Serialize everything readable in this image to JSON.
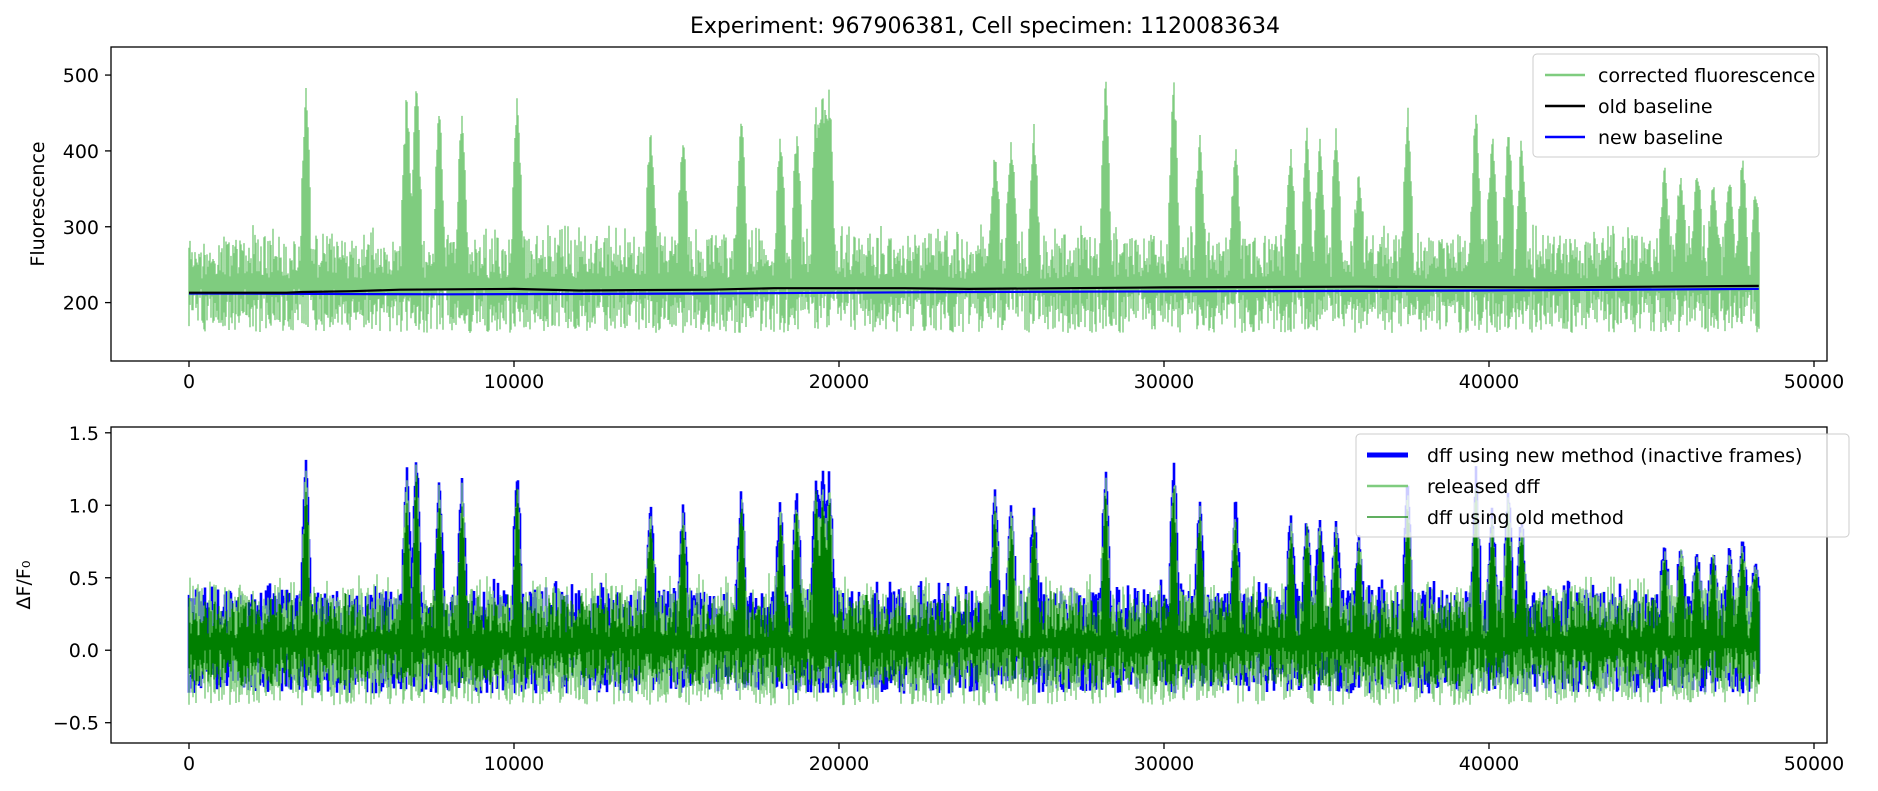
{
  "figure": {
    "title": "Experiment: 967906381, Cell specimen: 1120083634"
  },
  "chart_data": [
    {
      "type": "line",
      "title": "Experiment: 967906381, Cell specimen: 1120083634",
      "xlabel": "",
      "ylabel": "Fluorescence",
      "xlim": [
        -2400,
        50400
      ],
      "ylim": [
        123,
        537
      ],
      "xticks": [
        0,
        10000,
        20000,
        30000,
        40000,
        50000
      ],
      "yticks": [
        200,
        300,
        400,
        500
      ],
      "xtick_labels": [
        "0",
        "10000",
        "20000",
        "30000",
        "40000",
        "50000"
      ],
      "ytick_labels": [
        "200",
        "300",
        "400",
        "500"
      ],
      "legend_position": "top-right",
      "grid": false,
      "n_frames": 48300,
      "series": [
        {
          "name": "corrected fluorescence",
          "color": "#7fcc7f",
          "baseline": 215,
          "noise_range": [
            160,
            290
          ],
          "peaks": [
            {
              "x": 3600,
              "y": 502
            },
            {
              "x": 6700,
              "y": 488
            },
            {
              "x": 7000,
              "y": 515
            },
            {
              "x": 7700,
              "y": 470
            },
            {
              "x": 8400,
              "y": 470
            },
            {
              "x": 10100,
              "y": 480
            },
            {
              "x": 14200,
              "y": 440
            },
            {
              "x": 15200,
              "y": 436
            },
            {
              "x": 17000,
              "y": 462
            },
            {
              "x": 18200,
              "y": 432
            },
            {
              "x": 18700,
              "y": 440
            },
            {
              "x": 19300,
              "y": 470
            },
            {
              "x": 19500,
              "y": 497
            },
            {
              "x": 19700,
              "y": 490
            },
            {
              "x": 24800,
              "y": 410
            },
            {
              "x": 25300,
              "y": 423
            },
            {
              "x": 26000,
              "y": 440
            },
            {
              "x": 28200,
              "y": 505
            },
            {
              "x": 30300,
              "y": 510
            },
            {
              "x": 31100,
              "y": 430
            },
            {
              "x": 32200,
              "y": 410
            },
            {
              "x": 33900,
              "y": 410
            },
            {
              "x": 34400,
              "y": 440
            },
            {
              "x": 34800,
              "y": 425
            },
            {
              "x": 35300,
              "y": 440
            },
            {
              "x": 36000,
              "y": 380
            },
            {
              "x": 37500,
              "y": 466
            },
            {
              "x": 39600,
              "y": 470
            },
            {
              "x": 40100,
              "y": 430
            },
            {
              "x": 40600,
              "y": 450
            },
            {
              "x": 41000,
              "y": 425
            },
            {
              "x": 45400,
              "y": 385
            },
            {
              "x": 45900,
              "y": 380
            },
            {
              "x": 46400,
              "y": 383
            },
            {
              "x": 46900,
              "y": 365
            },
            {
              "x": 47400,
              "y": 370
            },
            {
              "x": 47800,
              "y": 396
            },
            {
              "x": 48200,
              "y": 355
            }
          ]
        },
        {
          "name": "old baseline",
          "color": "#000000",
          "points": [
            [
              0,
              213
            ],
            [
              3000,
              213
            ],
            [
              3500,
              214
            ],
            [
              5000,
              215
            ],
            [
              6500,
              217
            ],
            [
              10000,
              218
            ],
            [
              12000,
              216
            ],
            [
              16000,
              217
            ],
            [
              18000,
              219
            ],
            [
              22000,
              219
            ],
            [
              24000,
              218
            ],
            [
              30000,
              220
            ],
            [
              36000,
              221
            ],
            [
              42000,
              220
            ],
            [
              48300,
              222
            ]
          ]
        },
        {
          "name": "new baseline",
          "color": "#0000ff",
          "points": [
            [
              0,
              212
            ],
            [
              8000,
              211
            ],
            [
              16000,
              212
            ],
            [
              24000,
              214
            ],
            [
              32000,
              215
            ],
            [
              40000,
              216
            ],
            [
              48300,
              218
            ]
          ]
        }
      ]
    },
    {
      "type": "line",
      "title": "",
      "xlabel": "",
      "ylabel": "ΔF/F₀",
      "xlim": [
        -2400,
        50400
      ],
      "ylim": [
        -0.64,
        1.54
      ],
      "xticks": [
        0,
        10000,
        20000,
        30000,
        40000,
        50000
      ],
      "yticks": [
        -0.5,
        0.0,
        0.5,
        1.0,
        1.5
      ],
      "xtick_labels": [
        "0",
        "10000",
        "20000",
        "30000",
        "40000",
        "50000"
      ],
      "ytick_labels": [
        "−0.5",
        "0.0",
        "0.5",
        "1.0",
        "1.5"
      ],
      "legend_position": "top-right",
      "grid": false,
      "n_frames": 48300,
      "series": [
        {
          "name": "dff using new method (inactive frames)",
          "color": "#0000ff",
          "noise_range": [
            -0.3,
            0.42
          ],
          "peaks": [
            {
              "x": 3600,
              "y": 1.38
            },
            {
              "x": 6700,
              "y": 1.3
            },
            {
              "x": 7000,
              "y": 1.45
            },
            {
              "x": 7700,
              "y": 1.23
            },
            {
              "x": 8400,
              "y": 1.22
            },
            {
              "x": 10100,
              "y": 1.3
            },
            {
              "x": 14200,
              "y": 1.05
            },
            {
              "x": 15200,
              "y": 1.05
            },
            {
              "x": 17000,
              "y": 1.2
            },
            {
              "x": 18200,
              "y": 1.1
            },
            {
              "x": 18700,
              "y": 1.15
            },
            {
              "x": 19300,
              "y": 1.28
            },
            {
              "x": 19500,
              "y": 1.32
            },
            {
              "x": 19700,
              "y": 1.28
            },
            {
              "x": 24800,
              "y": 1.15
            },
            {
              "x": 25300,
              "y": 1.08
            },
            {
              "x": 26000,
              "y": 1.06
            },
            {
              "x": 28200,
              "y": 1.35
            },
            {
              "x": 30300,
              "y": 1.38
            },
            {
              "x": 31100,
              "y": 1.1
            },
            {
              "x": 32200,
              "y": 1.07
            },
            {
              "x": 33900,
              "y": 0.97
            },
            {
              "x": 34400,
              "y": 0.97
            },
            {
              "x": 34800,
              "y": 0.96
            },
            {
              "x": 35300,
              "y": 0.93
            },
            {
              "x": 36000,
              "y": 0.83
            },
            {
              "x": 37500,
              "y": 1.24
            },
            {
              "x": 39600,
              "y": 1.28
            },
            {
              "x": 40100,
              "y": 1.03
            },
            {
              "x": 40600,
              "y": 1.18
            },
            {
              "x": 41000,
              "y": 1.0
            },
            {
              "x": 45400,
              "y": 0.75
            },
            {
              "x": 45900,
              "y": 0.75
            },
            {
              "x": 46400,
              "y": 0.7
            },
            {
              "x": 46900,
              "y": 0.73
            },
            {
              "x": 47400,
              "y": 0.73
            },
            {
              "x": 47800,
              "y": 0.8
            },
            {
              "x": 48200,
              "y": 0.63
            }
          ]
        },
        {
          "name": "released dff",
          "color": "#7fcc7f",
          "noise_range": [
            -0.38,
            0.45
          ]
        },
        {
          "name": "dff using old method",
          "color": "#007f00",
          "noise_range": [
            -0.25,
            0.35
          ]
        }
      ]
    }
  ]
}
